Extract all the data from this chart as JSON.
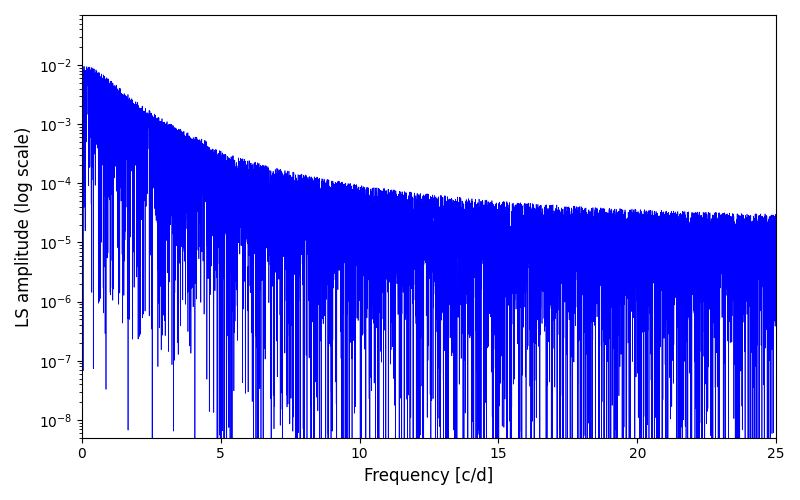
{
  "xlabel": "Frequency [c/d]",
  "ylabel": "LS amplitude (log scale)",
  "xlim": [
    0,
    25
  ],
  "ylim": [
    5e-09,
    0.07
  ],
  "line_color": "#0000ff",
  "line_width": 0.5,
  "background_color": "#ffffff",
  "figsize": [
    8.0,
    5.0
  ],
  "dpi": 100,
  "freq_max": 25.0,
  "n_points": 8000,
  "seed": 12345
}
